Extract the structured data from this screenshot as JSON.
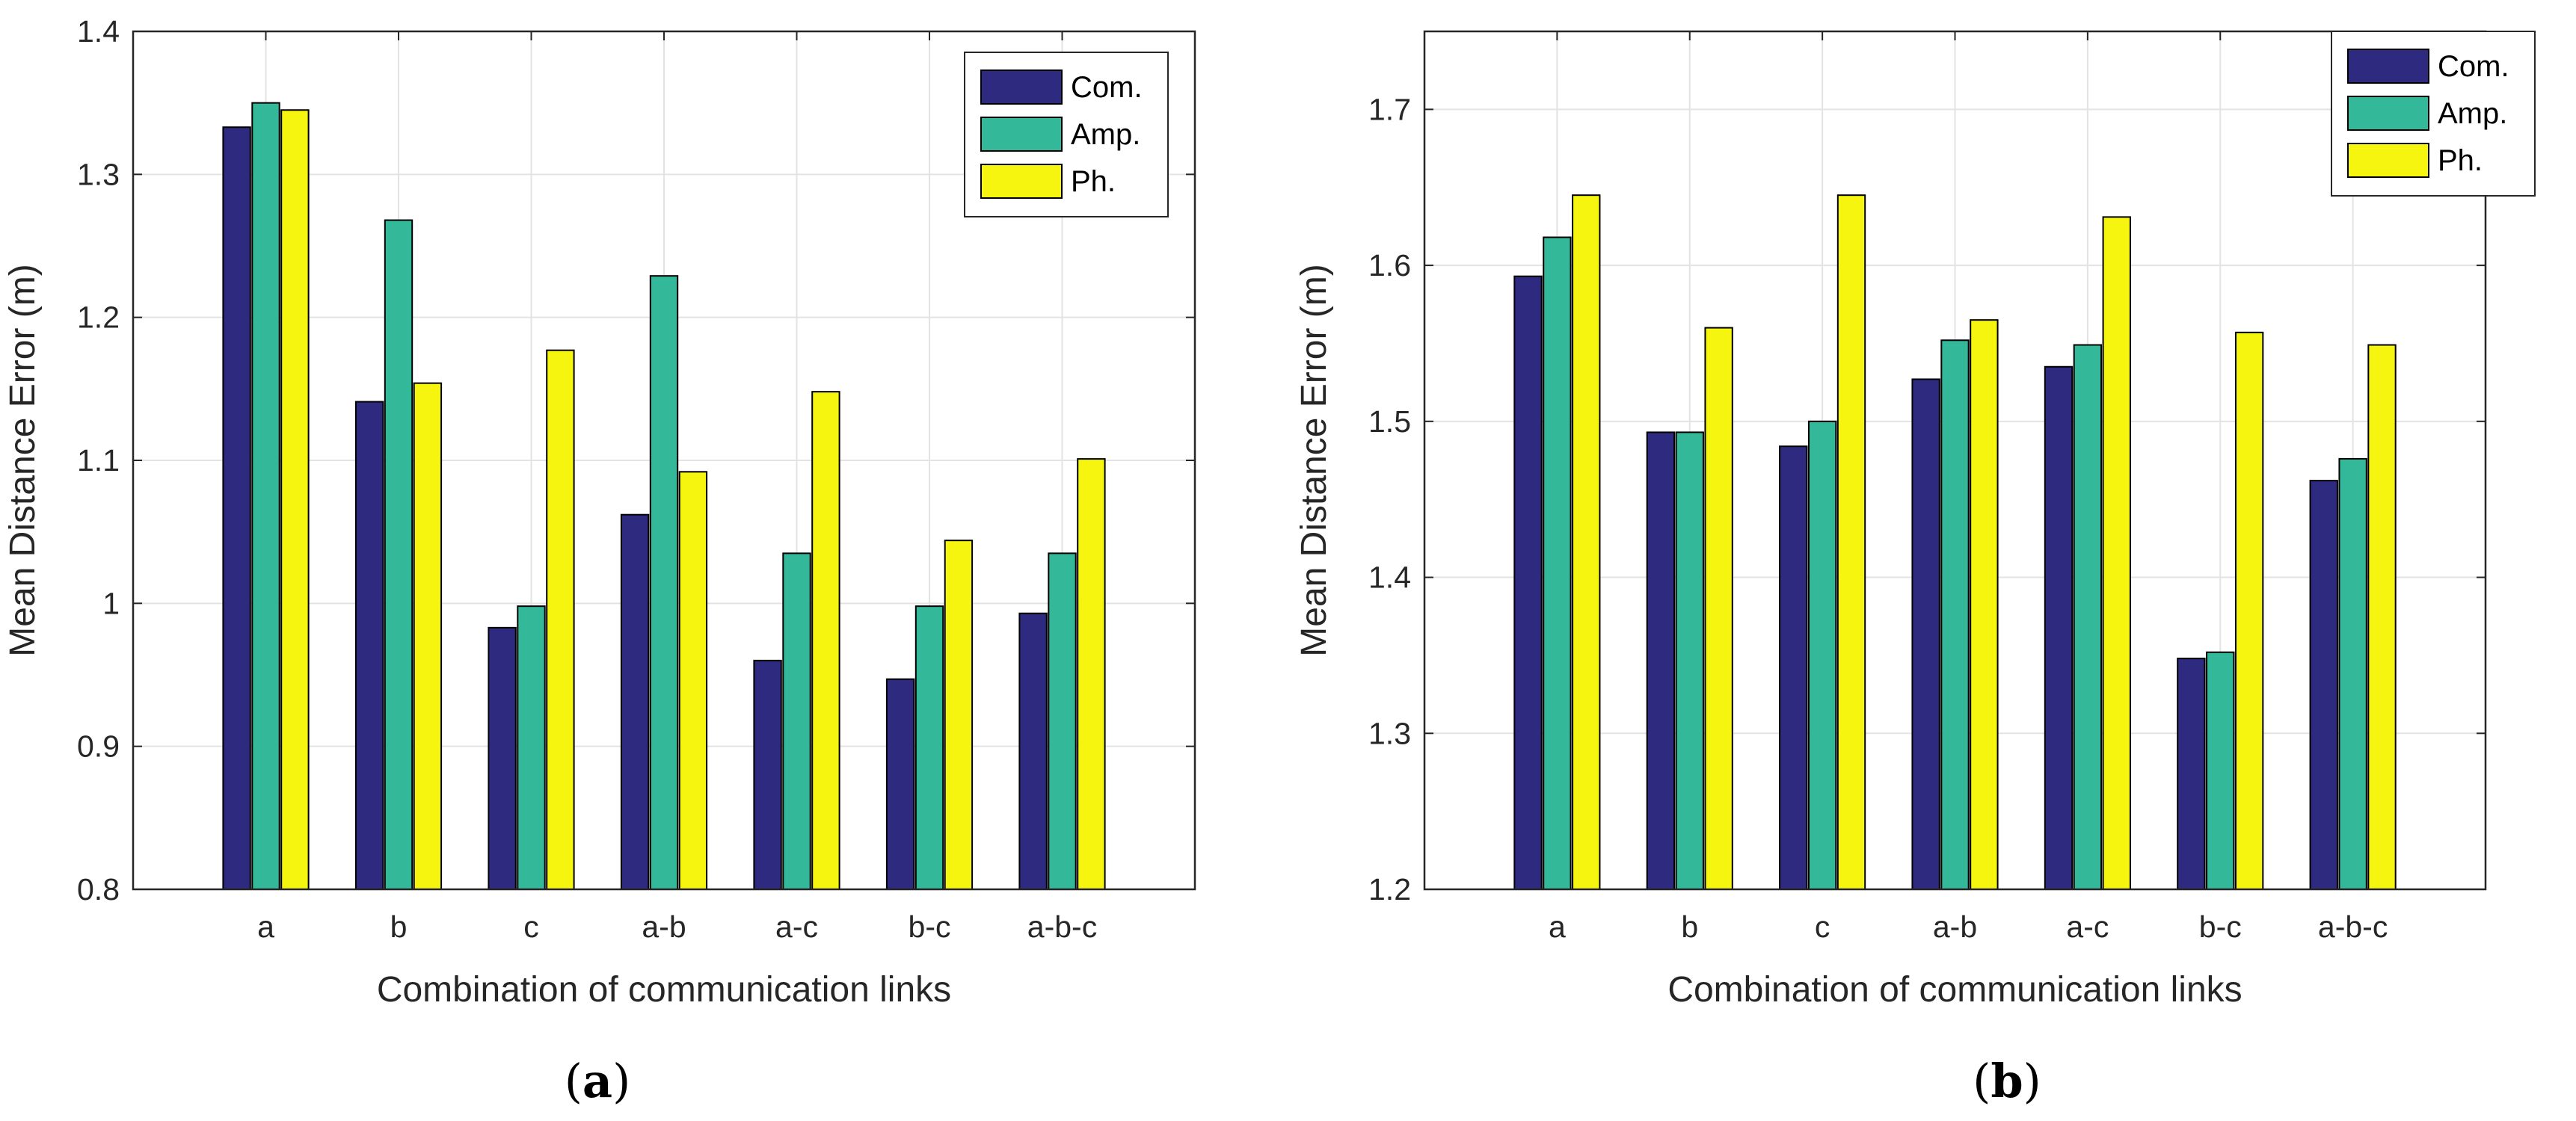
{
  "chart_data": [
    {
      "type": "bar",
      "panel_label": "a",
      "title": "",
      "xlabel": "Combination of communication links",
      "ylabel": "Mean Distance Error (m)",
      "categories": [
        "a",
        "b",
        "c",
        "a-b",
        "a-c",
        "b-c",
        "a-b-c"
      ],
      "ylim": [
        0.8,
        1.4
      ],
      "yticks": [
        0.8,
        0.9,
        1.0,
        1.1,
        1.2,
        1.3,
        1.4
      ],
      "ytick_labels": [
        "0.8",
        "0.9",
        "1",
        "1.1",
        "1.2",
        "1.3",
        "1.4"
      ],
      "grid": true,
      "legend_position": "top-right",
      "series": [
        {
          "name": "Com.",
          "color": "#2e2a7f",
          "values": [
            1.333,
            1.141,
            0.983,
            1.062,
            0.96,
            0.947,
            0.993
          ]
        },
        {
          "name": "Amp.",
          "color": "#33b99a",
          "values": [
            1.35,
            1.268,
            0.998,
            1.229,
            1.035,
            0.998,
            1.035
          ]
        },
        {
          "name": "Ph.",
          "color": "#f5f50f",
          "values": [
            1.345,
            1.154,
            1.177,
            1.092,
            1.148,
            1.044,
            1.101
          ]
        }
      ]
    },
    {
      "type": "bar",
      "panel_label": "b",
      "title": "",
      "xlabel": "Combination of communication links",
      "ylabel": "Mean Distance Error (m)",
      "categories": [
        "a",
        "b",
        "c",
        "a-b",
        "a-c",
        "b-c",
        "a-b-c"
      ],
      "ylim": [
        1.2,
        1.75
      ],
      "yticks": [
        1.2,
        1.3,
        1.4,
        1.5,
        1.6,
        1.7
      ],
      "ytick_labels": [
        "1.2",
        "1.3",
        "1.4",
        "1.5",
        "1.6",
        "1.7"
      ],
      "grid": true,
      "legend_position": "top-right",
      "series": [
        {
          "name": "Com.",
          "color": "#2e2a7f",
          "values": [
            1.593,
            1.493,
            1.484,
            1.527,
            1.535,
            1.348,
            1.462
          ]
        },
        {
          "name": "Amp.",
          "color": "#33b99a",
          "values": [
            1.618,
            1.493,
            1.5,
            1.552,
            1.549,
            1.352,
            1.476
          ]
        },
        {
          "name": "Ph.",
          "color": "#f5f50f",
          "values": [
            1.645,
            1.56,
            1.645,
            1.565,
            1.631,
            1.557,
            1.549
          ]
        }
      ]
    }
  ]
}
